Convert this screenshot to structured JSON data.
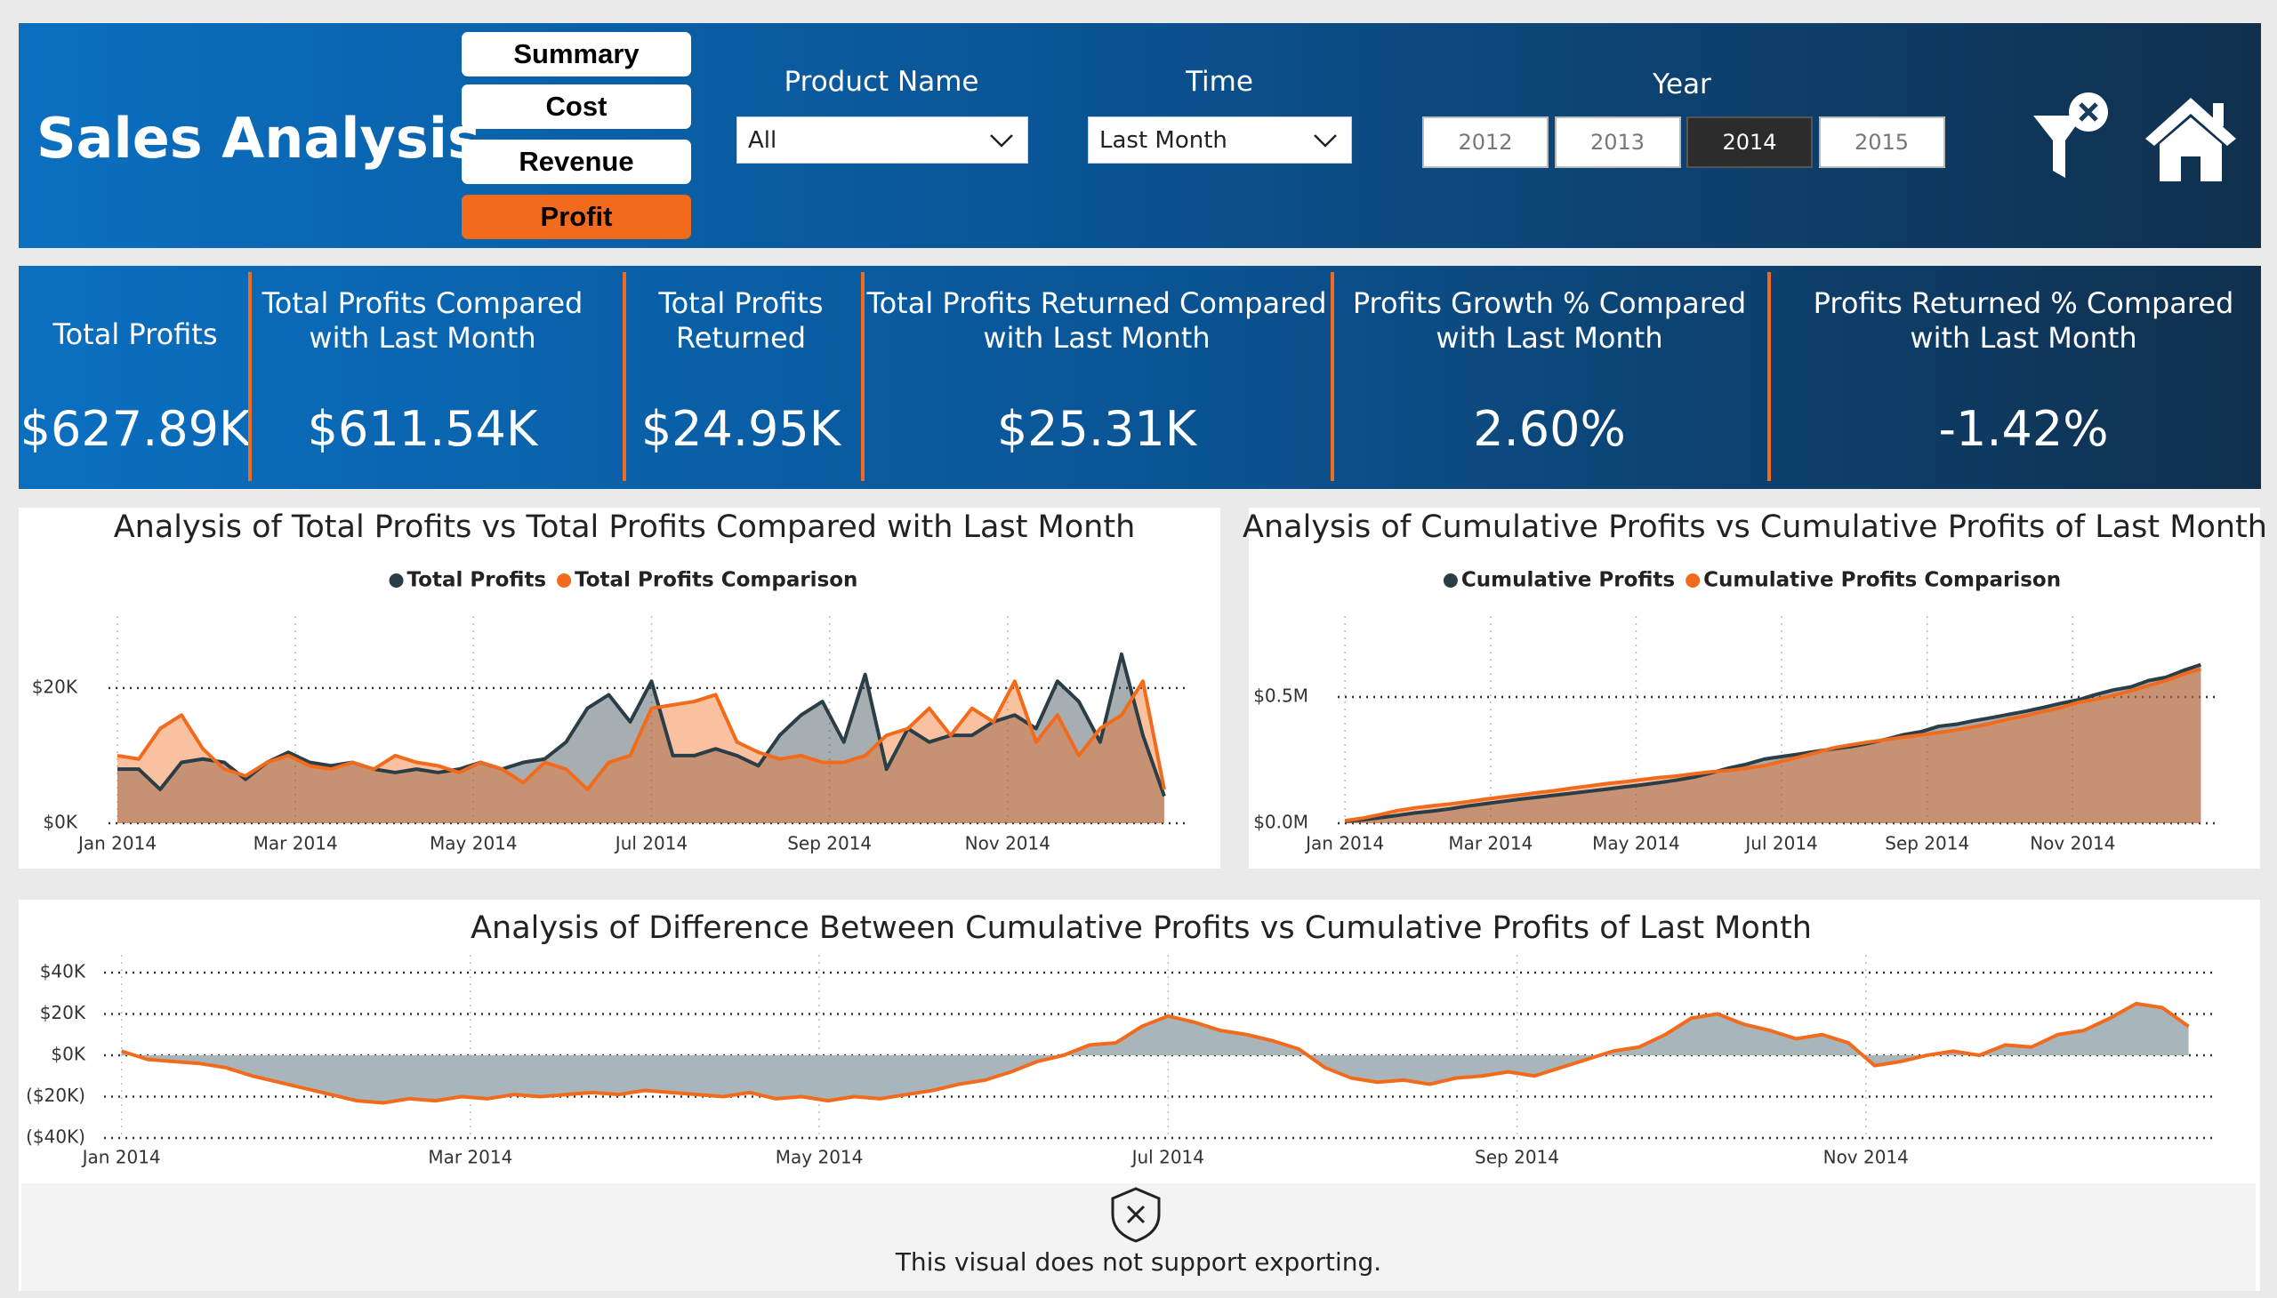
{
  "header": {
    "title": "Sales Analysis",
    "nav": {
      "items": [
        "Summary",
        "Cost",
        "Revenue",
        "Profit"
      ],
      "selected": 3
    },
    "filters": {
      "product": {
        "label": "Product Name",
        "value": "All"
      },
      "time": {
        "label": "Time",
        "value": "Last Month"
      },
      "year": {
        "label": "Year",
        "options": [
          "2012",
          "2013",
          "2014",
          "2015"
        ],
        "selected": 2
      }
    }
  },
  "kpis": [
    {
      "label": [
        "Total Profits"
      ],
      "value": "$627.89K"
    },
    {
      "label": [
        "Total Profits Compared",
        "with Last Month"
      ],
      "value": "$611.54K"
    },
    {
      "label": [
        "Total Profits",
        "Returned"
      ],
      "value": "$24.95K"
    },
    {
      "label": [
        "Total Profits Returned Compared",
        "with Last Month"
      ],
      "value": "$25.31K"
    },
    {
      "label": [
        "Profits Growth % Compared",
        "with Last Month"
      ],
      "value": "2.60%"
    },
    {
      "label": [
        "Profits Returned % Compared",
        "with Last Month"
      ],
      "value": "-1.42%"
    }
  ],
  "chart_data": [
    {
      "type": "area",
      "title": "Analysis of Total Profits vs Total Profits Compared with Last Month",
      "legend": true,
      "grid": true,
      "x": [
        0,
        0.24,
        0.48,
        0.72,
        0.96,
        1.2,
        1.44,
        1.68,
        1.92,
        2.16,
        2.4,
        2.64,
        2.88,
        3.12,
        3.36,
        3.6,
        3.84,
        4.08,
        4.32,
        4.56,
        4.8,
        5.04,
        5.28,
        5.52,
        5.76,
        6,
        6.24,
        6.48,
        6.72,
        6.96,
        7.2,
        7.44,
        7.68,
        7.92,
        8.16,
        8.4,
        8.64,
        8.88,
        9.12,
        9.36,
        9.6,
        9.84,
        10.08,
        10.32,
        10.56,
        10.8,
        11.04,
        11.28,
        11.52,
        11.76
      ],
      "xlim": [
        -0.1,
        12
      ],
      "xticks": [
        {
          "value": 0,
          "label": "Jan 2014"
        },
        {
          "value": 2,
          "label": "Mar 2014"
        },
        {
          "value": 4,
          "label": "May 2014"
        },
        {
          "value": 6,
          "label": "Jul 2014"
        },
        {
          "value": 8,
          "label": "Sep 2014"
        },
        {
          "value": 10,
          "label": "Nov 2014"
        }
      ],
      "ylim": [
        0,
        28000
      ],
      "yticks": [
        {
          "value": 0,
          "label": "$0K"
        },
        {
          "value": 20000,
          "label": "$20K"
        }
      ],
      "series": [
        {
          "name": "Total Profits",
          "color": "#2b3e48",
          "values": [
            8000,
            8000,
            5000,
            9000,
            9500,
            9000,
            6500,
            9000,
            10500,
            9000,
            8500,
            9000,
            8000,
            7500,
            8000,
            7500,
            8000,
            9000,
            8000,
            9000,
            9500,
            12000,
            17000,
            19000,
            15000,
            21000,
            10000,
            10000,
            11000,
            10000,
            8500,
            13000,
            16000,
            18000,
            12000,
            22000,
            8000,
            14000,
            12000,
            13000,
            13000,
            15000,
            16000,
            14000,
            21000,
            18000,
            12000,
            25000,
            13000,
            4000
          ]
        },
        {
          "name": "Total Profits Comparison",
          "color": "#f26b1d",
          "values": [
            10000,
            9500,
            14000,
            16000,
            11000,
            8000,
            7000,
            9000,
            10000,
            8500,
            8000,
            9000,
            8000,
            10000,
            9000,
            8500,
            7500,
            9000,
            8000,
            6000,
            9000,
            8000,
            5000,
            9000,
            10000,
            17000,
            17500,
            18000,
            19000,
            12000,
            10500,
            9500,
            10000,
            9000,
            9000,
            10000,
            13000,
            14000,
            17000,
            13000,
            17000,
            15000,
            21000,
            12000,
            16000,
            10000,
            14000,
            16000,
            21000,
            5000
          ]
        }
      ]
    },
    {
      "type": "area",
      "title": "Analysis of Cumulative Profits vs Cumulative Profits of Last Month",
      "legend": true,
      "grid": true,
      "x": [
        0,
        0.24,
        0.48,
        0.72,
        0.96,
        1.2,
        1.44,
        1.68,
        1.92,
        2.16,
        2.4,
        2.64,
        2.88,
        3.12,
        3.36,
        3.6,
        3.84,
        4.08,
        4.32,
        4.56,
        4.8,
        5.04,
        5.28,
        5.52,
        5.76,
        6,
        6.24,
        6.48,
        6.72,
        6.96,
        7.2,
        7.44,
        7.68,
        7.92,
        8.16,
        8.4,
        8.64,
        8.88,
        9.12,
        9.36,
        9.6,
        9.84,
        10.08,
        10.32,
        10.56,
        10.8,
        11.04,
        11.28,
        11.52,
        11.76
      ],
      "xlim": [
        -0.1,
        12
      ],
      "xticks": [
        {
          "value": 0,
          "label": "Jan 2014"
        },
        {
          "value": 2,
          "label": "Mar 2014"
        },
        {
          "value": 4,
          "label": "May 2014"
        },
        {
          "value": 6,
          "label": "Jul 2014"
        },
        {
          "value": 8,
          "label": "Sep 2014"
        },
        {
          "value": 10,
          "label": "Nov 2014"
        }
      ],
      "ylim": [
        0,
        750000
      ],
      "yticks": [
        {
          "value": 0,
          "label": "$0.0M"
        },
        {
          "value": 500000,
          "label": "$0.5M"
        }
      ],
      "series": [
        {
          "name": "Cumulative Profits",
          "color": "#2b3e48",
          "values": [
            8000,
            13000,
            22000,
            31000,
            41000,
            48000,
            57000,
            68000,
            77000,
            86000,
            95000,
            103000,
            111000,
            119000,
            127000,
            135000,
            144000,
            152000,
            161000,
            171000,
            183000,
            200000,
            219000,
            234000,
            254000,
            264000,
            274000,
            285000,
            295000,
            304000,
            317000,
            333000,
            351000,
            363000,
            384000,
            392000,
            406000,
            418000,
            431000,
            444000,
            459000,
            475000,
            489000,
            510000,
            528000,
            540000,
            565000,
            578000,
            605000,
            628000
          ]
        },
        {
          "name": "Cumulative Profits Comparison",
          "color": "#f26b1d",
          "values": [
            10000,
            20000,
            34000,
            50000,
            61000,
            69000,
            76000,
            85000,
            95000,
            104000,
            112000,
            121000,
            129000,
            139000,
            148000,
            157000,
            164000,
            173000,
            181000,
            187000,
            196000,
            204000,
            209000,
            218000,
            228000,
            245000,
            262000,
            280000,
            299000,
            311000,
            322000,
            331000,
            341000,
            350000,
            359000,
            369000,
            382000,
            396000,
            413000,
            426000,
            443000,
            458000,
            479000,
            491000,
            507000,
            525000,
            545000,
            565000,
            590000,
            611000
          ]
        }
      ]
    },
    {
      "type": "area",
      "title": "Analysis of Difference Between Cumulative Profits vs Cumulative Profits of Last Month",
      "legend": false,
      "grid": true,
      "x": [
        0,
        0.15,
        0.3,
        0.45,
        0.6,
        0.75,
        0.9,
        1.05,
        1.2,
        1.35,
        1.5,
        1.65,
        1.8,
        1.95,
        2.1,
        2.25,
        2.4,
        2.55,
        2.7,
        2.85,
        3,
        3.15,
        3.3,
        3.45,
        3.6,
        3.75,
        3.9,
        4.05,
        4.2,
        4.35,
        4.5,
        4.65,
        4.8,
        4.95,
        5.1,
        5.25,
        5.4,
        5.55,
        5.7,
        5.85,
        6,
        6.15,
        6.3,
        6.45,
        6.6,
        6.75,
        6.9,
        7.05,
        7.2,
        7.35,
        7.5,
        7.65,
        7.8,
        7.95,
        8.1,
        8.25,
        8.4,
        8.55,
        8.7,
        8.85,
        9,
        9.15,
        9.3,
        9.45,
        9.6,
        9.75,
        9.9,
        10.05,
        10.2,
        10.35,
        10.5,
        10.65,
        10.8,
        10.95,
        11.1,
        11.25,
        11.4,
        11.55,
        11.7,
        11.85
      ],
      "xlim": [
        -0.1,
        12
      ],
      "xticks": [
        {
          "value": 0,
          "label": "Jan 2014"
        },
        {
          "value": 2,
          "label": "Mar 2014"
        },
        {
          "value": 4,
          "label": "May 2014"
        },
        {
          "value": 6,
          "label": "Jul 2014"
        },
        {
          "value": 8,
          "label": "Sep 2014"
        },
        {
          "value": 10,
          "label": "Nov 2014"
        }
      ],
      "ylim": [
        -40000,
        40000
      ],
      "yticks": [
        {
          "value": 40000,
          "label": "$40K"
        },
        {
          "value": 20000,
          "label": "$20K"
        },
        {
          "value": 0,
          "label": "$0K"
        },
        {
          "value": -20000,
          "label": "($20K)"
        },
        {
          "value": -40000,
          "label": "($40K)"
        }
      ],
      "color": "#f26b1d",
      "fill_color": "#a8b5bb",
      "values": [
        2000,
        -2000,
        -3000,
        -4000,
        -6000,
        -10000,
        -13000,
        -16000,
        -19000,
        -22000,
        -23000,
        -21000,
        -22000,
        -20000,
        -21000,
        -19000,
        -20000,
        -19000,
        -18000,
        -19000,
        -17000,
        -18000,
        -19000,
        -20000,
        -18000,
        -21000,
        -20000,
        -22000,
        -20000,
        -21000,
        -19000,
        -17000,
        -14000,
        -12000,
        -8000,
        -3000,
        0,
        5000,
        6000,
        14000,
        19000,
        16000,
        12000,
        10000,
        7000,
        3000,
        -6000,
        -11000,
        -13000,
        -12000,
        -14000,
        -11000,
        -10000,
        -8000,
        -10000,
        -6000,
        -2000,
        2000,
        4000,
        10000,
        18000,
        20000,
        15000,
        12000,
        8000,
        10000,
        6000,
        -5000,
        -3000,
        0,
        2000,
        0,
        5000,
        4000,
        10000,
        12000,
        18000,
        25000,
        23000,
        14000
      ]
    }
  ],
  "notice": "This visual does not support exporting."
}
